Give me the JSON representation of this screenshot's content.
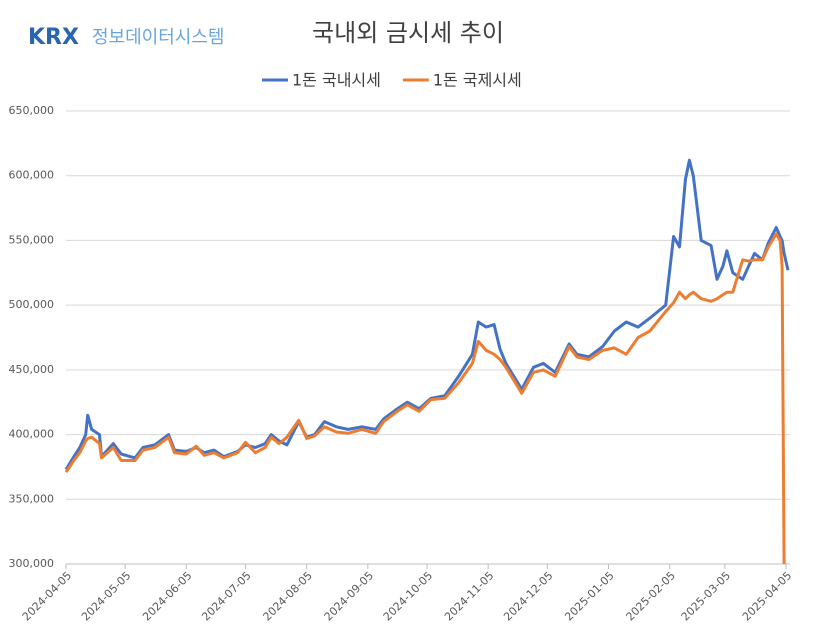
{
  "logo": {
    "brand": "KRX",
    "text": "정보데이터시스템"
  },
  "chart_data": {
    "type": "line",
    "title": "국내외 금시세 추이",
    "x": [
      "2024-04-05",
      "2024-04-09",
      "2024-04-12",
      "2024-04-15",
      "2024-04-16",
      "2024-04-18",
      "2024-04-22",
      "2024-04-23",
      "2024-04-29",
      "2024-05-03",
      "2024-05-10",
      "2024-05-14",
      "2024-05-20",
      "2024-05-27",
      "2024-05-30",
      "2024-06-05",
      "2024-06-10",
      "2024-06-14",
      "2024-06-19",
      "2024-06-24",
      "2024-07-01",
      "2024-07-05",
      "2024-07-10",
      "2024-07-15",
      "2024-07-18",
      "2024-07-22",
      "2024-07-26",
      "2024-08-01",
      "2024-08-05",
      "2024-08-09",
      "2024-08-14",
      "2024-08-20",
      "2024-08-26",
      "2024-09-02",
      "2024-09-09",
      "2024-09-13",
      "2024-09-20",
      "2024-09-25",
      "2024-10-01",
      "2024-10-07",
      "2024-10-14",
      "2024-10-21",
      "2024-10-28",
      "2024-10-31",
      "2024-11-04",
      "2024-11-08",
      "2024-11-11",
      "2024-11-14",
      "2024-11-18",
      "2024-11-22",
      "2024-11-28",
      "2024-12-03",
      "2024-12-09",
      "2024-12-16",
      "2024-12-20",
      "2024-12-26",
      "2025-01-02",
      "2025-01-08",
      "2025-01-14",
      "2025-01-20",
      "2025-01-26",
      "2025-02-03",
      "2025-02-07",
      "2025-02-10",
      "2025-02-13",
      "2025-02-15",
      "2025-02-17",
      "2025-02-21",
      "2025-02-26",
      "2025-03-01",
      "2025-03-04",
      "2025-03-06",
      "2025-03-09",
      "2025-03-14",
      "2025-03-17",
      "2025-03-20",
      "2025-03-24",
      "2025-03-27",
      "2025-03-31",
      "2025-04-02",
      "2025-04-03",
      "2025-04-04",
      "2025-04-06"
    ],
    "series": [
      {
        "name": "1돈 국내시세",
        "color": "#4472c4",
        "values": [
          373000,
          383000,
          390000,
          400000,
          415000,
          404000,
          400000,
          383000,
          393000,
          385000,
          382000,
          390000,
          392000,
          400000,
          388000,
          387000,
          390000,
          386000,
          388000,
          383000,
          387000,
          392000,
          390000,
          393000,
          400000,
          395000,
          392000,
          410000,
          398000,
          400000,
          410000,
          406000,
          404000,
          406000,
          404000,
          412000,
          420000,
          425000,
          420000,
          428000,
          430000,
          445000,
          462000,
          487000,
          483000,
          485000,
          466000,
          455000,
          445000,
          435000,
          452000,
          455000,
          448000,
          470000,
          462000,
          460000,
          468000,
          480000,
          487000,
          483000,
          490000,
          500000,
          553000,
          545000,
          597000,
          612000,
          600000,
          550000,
          546000,
          520000,
          530000,
          542000,
          525000,
          520000,
          530000,
          540000,
          535000,
          548000,
          560000,
          553000,
          550000,
          540000,
          527000
        ]
      },
      {
        "name": "1돈 국제시세",
        "color": "#ed7d31",
        "values": [
          371000,
          380000,
          386000,
          395000,
          397000,
          398000,
          393000,
          382000,
          390000,
          380000,
          380000,
          388000,
          390000,
          398000,
          386000,
          385000,
          391000,
          384000,
          386000,
          382000,
          386000,
          394000,
          386000,
          390000,
          398000,
          393000,
          398000,
          411000,
          397000,
          399000,
          406000,
          402000,
          401000,
          404000,
          401000,
          410000,
          418000,
          423000,
          418000,
          427000,
          428000,
          440000,
          455000,
          472000,
          465000,
          462000,
          458000,
          452000,
          442000,
          432000,
          448000,
          450000,
          445000,
          468000,
          460000,
          458000,
          465000,
          467000,
          462000,
          475000,
          480000,
          495000,
          502000,
          510000,
          505000,
          508000,
          510000,
          505000,
          503000,
          505000,
          508000,
          510000,
          510000,
          535000,
          534000,
          535000,
          535000,
          545000,
          555000,
          550000,
          530000,
          300000,
          null
        ]
      }
    ],
    "xlim": [
      "2024-04-05",
      "2025-04-07"
    ],
    "xticks": [
      "2024-04-05",
      "2024-05-05",
      "2024-06-05",
      "2024-07-05",
      "2024-08-05",
      "2024-09-05",
      "2024-10-05",
      "2024-11-05",
      "2024-12-05",
      "2025-01-05",
      "2025-02-05",
      "2025-03-05",
      "2025-04-05"
    ],
    "ylim": [
      300000,
      650000
    ],
    "yticks": [
      {
        "value": 300000,
        "label": "300,000"
      },
      {
        "value": 350000,
        "label": "350,000"
      },
      {
        "value": 400000,
        "label": "400,000"
      },
      {
        "value": 450000,
        "label": "450,000"
      },
      {
        "value": 500000,
        "label": "500,000"
      },
      {
        "value": 550000,
        "label": "550,000"
      },
      {
        "value": 600000,
        "label": "600,000"
      },
      {
        "value": 650000,
        "label": "650,000"
      }
    ],
    "grid": true,
    "legend": "top"
  }
}
